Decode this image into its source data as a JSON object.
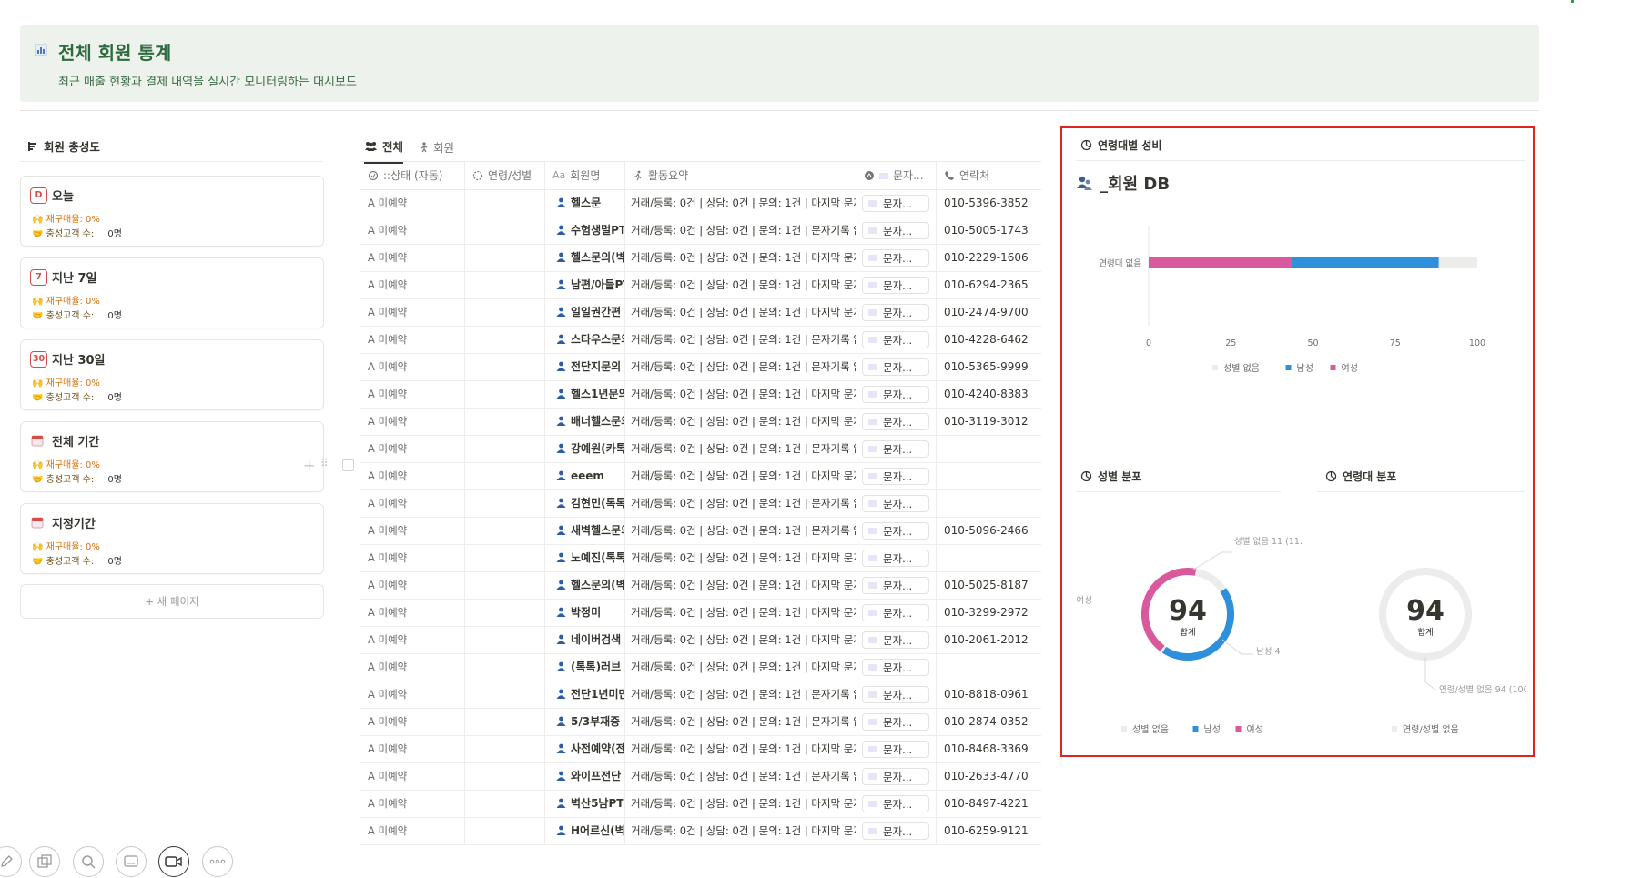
{
  "header": {
    "title": "전체 회원 통계",
    "subtitle": "최근 매출 현황과 결제 내역을 실시간 모니터링하는 대시보드"
  },
  "left": {
    "heading": "회원 충성도",
    "cards": [
      {
        "badge": "D",
        "title": "오늘",
        "line1": "재구매율: 0%",
        "line2_label": "충성고객 수:",
        "line2_value": "0명"
      },
      {
        "badge": "7",
        "title": "지난 7일",
        "line1": "재구매율: 0%",
        "line2_label": "충성고객 수:",
        "line2_value": "0명"
      },
      {
        "badge": "30",
        "title": "지난 30일",
        "line1": "재구매율: 0%",
        "line2_label": "충성고객 수:",
        "line2_value": "0명"
      },
      {
        "badge": "",
        "title": "전체 기간",
        "line1": "재구매율: 0%",
        "line2_label": "충성고객 수:",
        "line2_value": "0명"
      },
      {
        "badge": "",
        "title": "지정기간",
        "line1": "재구매율: 0%",
        "line2_label": "충성고객 수:",
        "line2_value": "0명"
      }
    ],
    "new_page": "+ 새 페이지"
  },
  "table": {
    "tabs": [
      "전체",
      "회원"
    ],
    "columns": [
      "::상태 (자동)",
      "연령/성별",
      "회원명",
      "활동요약",
      "문자...",
      "연락처"
    ],
    "rows": [
      {
        "status": "A 미예약",
        "name": "헬스문",
        "act": "거래/등록: 0건 | 상담: 0건 | 문의: 1건 | 마지막 문자",
        "msg": "문자...",
        "phone": "010-5396-3852"
      },
      {
        "status": "A 미예약",
        "name": "수험생멀PT",
        "act": "거래/등록: 0건 | 상담: 0건 | 문의: 1건 | 문자기록 없",
        "msg": "문자...",
        "phone": "010-5005-1743"
      },
      {
        "status": "A 미예약",
        "name": "헬스문의(벽",
        "act": "거래/등록: 0건 | 상담: 0건 | 문의: 1건 | 마지막 문자",
        "msg": "문자...",
        "phone": "010-2229-1606"
      },
      {
        "status": "A 미예약",
        "name": "남편/아들PT",
        "act": "거래/등록: 0건 | 상담: 0건 | 문의: 1건 | 마지막 문자",
        "msg": "문자...",
        "phone": "010-6294-2365"
      },
      {
        "status": "A 미예약",
        "name": "일일권간편",
        "act": "거래/등록: 0건 | 상담: 0건 | 문의: 1건 | 마지막 문자",
        "msg": "문자...",
        "phone": "010-2474-9700"
      },
      {
        "status": "A 미예약",
        "name": "스타우스문의",
        "act": "거래/등록: 0건 | 상담: 0건 | 문의: 1건 | 문자기록 없",
        "msg": "문자...",
        "phone": "010-4228-6462"
      },
      {
        "status": "A 미예약",
        "name": "전단지문의",
        "act": "거래/등록: 0건 | 상담: 0건 | 문의: 1건 | 문자기록 없",
        "msg": "문자...",
        "phone": "010-5365-9999"
      },
      {
        "status": "A 미예약",
        "name": "헬스1년문의",
        "act": "거래/등록: 0건 | 상담: 0건 | 문의: 1건 | 마지막 문자",
        "msg": "문자...",
        "phone": "010-4240-8383"
      },
      {
        "status": "A 미예약",
        "name": "배너헬스문의",
        "act": "거래/등록: 0건 | 상담: 0건 | 문의: 1건 | 마지막 문자",
        "msg": "문자...",
        "phone": "010-3119-3012"
      },
      {
        "status": "A 미예약",
        "name": "강예원(카톡",
        "act": "거래/등록: 0건 | 상담: 0건 | 문의: 1건 | 문자기록 없",
        "msg": "문자...",
        "phone": ""
      },
      {
        "status": "A 미예약",
        "name": "eeem",
        "act": "거래/등록: 0건 | 상담: 0건 | 문의: 1건 | 마지막 문자",
        "msg": "문자...",
        "phone": ""
      },
      {
        "status": "A 미예약",
        "name": "김현민(톡톡",
        "act": "거래/등록: 0건 | 상담: 0건 | 문의: 1건 | 문자기록 없",
        "msg": "문자...",
        "phone": ""
      },
      {
        "status": "A 미예약",
        "name": "새벽헬스문의",
        "act": "거래/등록: 0건 | 상담: 0건 | 문의: 1건 | 문자기록 없",
        "msg": "문자...",
        "phone": "010-5096-2466"
      },
      {
        "status": "A 미예약",
        "name": "노예진(톡톡",
        "act": "거래/등록: 0건 | 상담: 0건 | 문의: 1건 | 마지막 문자",
        "msg": "문자...",
        "phone": ""
      },
      {
        "status": "A 미예약",
        "name": "헬스문의(벽",
        "act": "거래/등록: 0건 | 상담: 0건 | 문의: 1건 | 마지막 문자",
        "msg": "문자...",
        "phone": "010-5025-8187"
      },
      {
        "status": "A 미예약",
        "name": "박정미",
        "act": "거래/등록: 0건 | 상담: 0건 | 문의: 1건 | 마지막 문자",
        "msg": "문자...",
        "phone": "010-3299-2972"
      },
      {
        "status": "A 미예약",
        "name": "네이버검색",
        "act": "거래/등록: 0건 | 상담: 0건 | 문의: 1건 | 마지막 문자",
        "msg": "문자...",
        "phone": "010-2061-2012"
      },
      {
        "status": "A 미예약",
        "name": "(톡톡)러브",
        "act": "거래/등록: 0건 | 상담: 0건 | 문의: 1건 | 마지막 문자",
        "msg": "문자...",
        "phone": ""
      },
      {
        "status": "A 미예약",
        "name": "전단1년미만",
        "act": "거래/등록: 0건 | 상담: 0건 | 문의: 1건 | 문자기록 없",
        "msg": "문자...",
        "phone": "010-8818-0961"
      },
      {
        "status": "A 미예약",
        "name": "5/3부재중",
        "act": "거래/등록: 0건 | 상담: 0건 | 문의: 1건 | 문자기록 없",
        "msg": "문자...",
        "phone": "010-2874-0352"
      },
      {
        "status": "A 미예약",
        "name": "사전예약(전",
        "act": "거래/등록: 0건 | 상담: 0건 | 문의: 1건 | 마지막 문자",
        "msg": "문자...",
        "phone": "010-8468-3369"
      },
      {
        "status": "A 미예약",
        "name": "와이프전단",
        "act": "거래/등록: 0건 | 상담: 0건 | 문의: 1건 | 문자기록 없",
        "msg": "문자...",
        "phone": "010-2633-4770"
      },
      {
        "status": "A 미예약",
        "name": "벽산5남PT",
        "act": "거래/등록: 0건 | 상담: 0건 | 문의: 1건 | 마지막 문자",
        "msg": "문자...",
        "phone": "010-8497-4221"
      },
      {
        "status": "A 미예약",
        "name": "H어르신(벽",
        "act": "거래/등록: 0건 | 상담: 0건 | 문의: 1건 | 마지막 문자",
        "msg": "문자...",
        "phone": "010-6259-9121"
      }
    ]
  },
  "right": {
    "section1_title": "연령대별 성비",
    "db_title": "_회원 DB",
    "section2_title": "성별 분포",
    "section3_title": "연령대 분포",
    "donut_total_label": "합계"
  },
  "colors": {
    "female": "#d85a9c",
    "male": "#2e8fdb",
    "none": "#ececeb",
    "header_bg": "#edf3ec",
    "highlight_border": "#e02424"
  },
  "toolbar": {
    "icons": [
      "pencil-icon",
      "copy-icon",
      "search-icon",
      "monitor-icon",
      "video-icon",
      "more-icon"
    ]
  },
  "chart_data": [
    {
      "type": "bar",
      "orientation": "horizontal",
      "stacked": true,
      "categories": [
        "연령대 없음"
      ],
      "series": [
        {
          "name": "성별 없음",
          "values": [
            11.7
          ]
        },
        {
          "name": "남성",
          "values": [
            44.7
          ]
        },
        {
          "name": "여성",
          "values": [
            43.6
          ]
        }
      ],
      "draw_order": [
        "여성",
        "남성",
        "성별 없음"
      ],
      "xlim": [
        0,
        100
      ],
      "xticks": [
        0,
        25,
        50,
        75,
        100
      ],
      "legend": [
        "성별 없음",
        "남성",
        "여성"
      ],
      "legend_position": "bottom"
    },
    {
      "type": "pie",
      "donut": true,
      "total": 94,
      "total_label": "합계",
      "slices": [
        {
          "name": "성별 없음",
          "value": 11
        },
        {
          "name": "남성",
          "value": 42
        },
        {
          "name": "여성",
          "value": 41
        }
      ],
      "slice_labels": [
        "성별 없음 11 (11.",
        "남성 4",
        "여성"
      ],
      "legend": [
        "성별 없음",
        "남성",
        "여성"
      ],
      "legend_position": "bottom"
    },
    {
      "type": "pie",
      "donut": true,
      "total": 94,
      "total_label": "합계",
      "slices": [
        {
          "name": "연령/성별 없음",
          "value": 94
        }
      ],
      "slice_labels": [
        "연령/성별 없음 94 (100"
      ],
      "legend": [
        "연령/성별 없음"
      ],
      "legend_position": "bottom"
    }
  ]
}
